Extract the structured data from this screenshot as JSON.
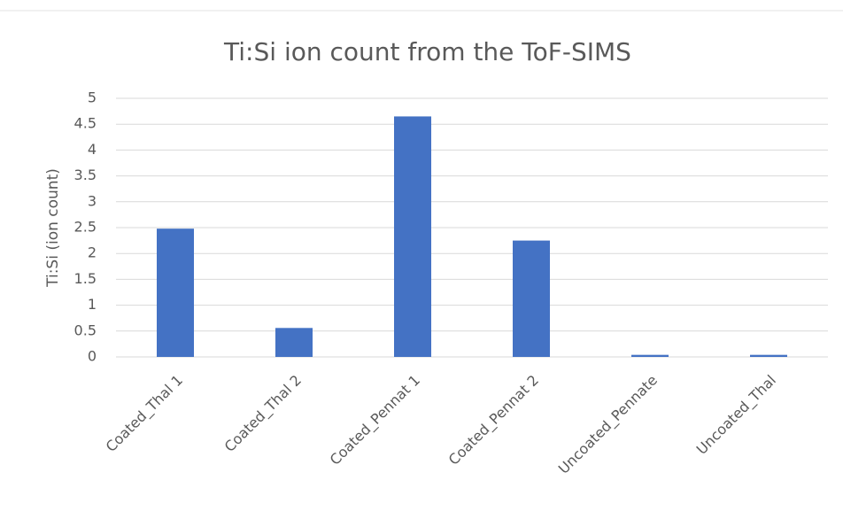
{
  "chart_data": {
    "type": "bar",
    "title": "Ti:Si ion count from the ToF-SIMS",
    "y_label": "Ti:Si (ion count)",
    "categories": [
      "Coated_Thal 1",
      "Coated_Thal 2",
      "Coated_Pennat 1",
      "Coated_Pennat 2",
      "Uncoated_Pennate",
      "Uncoated_Thal"
    ],
    "values": [
      2.48,
      0.56,
      4.65,
      2.25,
      0.04,
      0.04
    ],
    "color": "#4472c4",
    "ylim": [
      0,
      5
    ],
    "yticks": [
      0,
      0.5,
      1,
      1.5,
      2,
      2.5,
      3,
      3.5,
      4,
      4.5,
      5
    ],
    "grid": true
  }
}
